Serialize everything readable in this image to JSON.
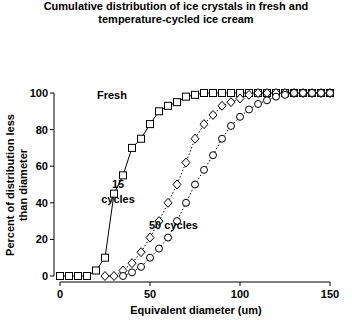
{
  "chart_data": {
    "type": "line",
    "title": "Cumulative distribution of ice crystals in fresh and temperature-cycled ice cream",
    "x_label": "Equivalent diameter (um)",
    "y_label": "Percent of distribution less than diameter",
    "xlim": [
      0,
      150
    ],
    "xticks": [
      0,
      50,
      100,
      150
    ],
    "ylim": [
      0,
      100
    ],
    "yticks": [
      0,
      20,
      40,
      60,
      80,
      100
    ],
    "grid": false,
    "series": [
      {
        "name": "Fresh",
        "color": "#000000",
        "marker": "square",
        "line_style": "solid",
        "x": [
          0,
          5,
          10,
          15,
          20,
          25,
          30,
          35,
          40,
          45,
          50,
          55,
          60,
          65,
          70,
          75,
          80,
          85,
          90,
          95,
          100,
          105,
          110,
          115,
          120,
          125,
          130,
          135,
          140,
          145,
          150
        ],
        "values": [
          0,
          0,
          0,
          0,
          3,
          10,
          45,
          55,
          70,
          75,
          83,
          90,
          93,
          95,
          98,
          99,
          100,
          100,
          100,
          100,
          100,
          100,
          100,
          100,
          100,
          100,
          100,
          100,
          100,
          100,
          100
        ]
      },
      {
        "name": "15 cycles",
        "color": "#000000",
        "marker": "diamond",
        "line_style": "dotted",
        "x": [
          25,
          30,
          35,
          40,
          45,
          50,
          55,
          60,
          65,
          70,
          75,
          80,
          85,
          90,
          95,
          100,
          105,
          110,
          115,
          120,
          125,
          130,
          135,
          140,
          145,
          150
        ],
        "values": [
          0,
          0,
          3,
          7,
          13,
          21,
          30,
          40,
          50,
          62,
          75,
          83,
          88,
          93,
          95,
          97,
          99,
          100,
          100,
          100,
          100,
          100,
          100,
          100,
          100,
          100
        ]
      },
      {
        "name": "50 cycles",
        "color": "#000000",
        "marker": "circle",
        "line_style": "dotted",
        "x": [
          35,
          40,
          45,
          50,
          55,
          60,
          65,
          70,
          75,
          80,
          85,
          90,
          95,
          100,
          105,
          110,
          115,
          120,
          125,
          130,
          135,
          140,
          145,
          150
        ],
        "values": [
          0,
          2,
          5,
          10,
          15,
          21,
          30,
          40,
          50,
          58,
          66,
          75,
          82,
          87,
          91,
          94,
          96,
          98,
          99,
          100,
          100,
          100,
          100,
          100
        ]
      }
    ]
  }
}
